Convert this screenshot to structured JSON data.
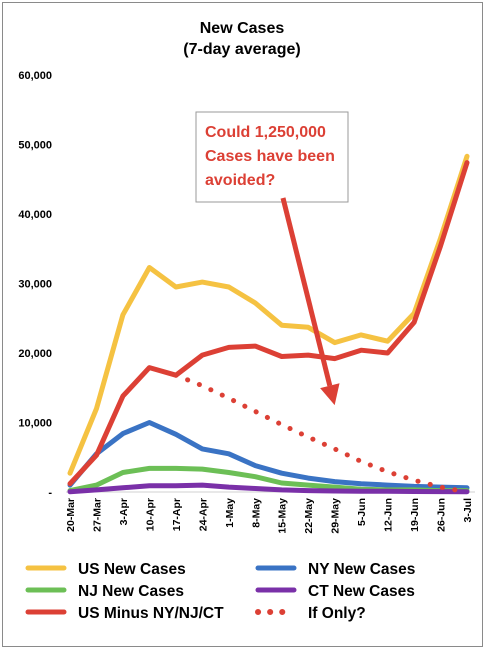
{
  "chart_data": {
    "type": "line",
    "title_lines": [
      "New Cases",
      "(7-day average)"
    ],
    "xlabel": "",
    "ylabel": "",
    "ylim": [
      0,
      60000
    ],
    "y_ticks": [
      0,
      10000,
      20000,
      30000,
      40000,
      50000,
      60000
    ],
    "y_tick_labels": [
      "-",
      "10,000",
      "20,000",
      "30,000",
      "40,000",
      "50,000",
      "60,000"
    ],
    "grid": false,
    "legend_position": "bottom",
    "categories": [
      "20-Mar",
      "27-Mar",
      "3-Apr",
      "10-Apr",
      "17-Apr",
      "24-Apr",
      "1-May",
      "8-May",
      "15-May",
      "22-May",
      "29-May",
      "5-Jun",
      "12-Jun",
      "19-Jun",
      "26-Jun",
      "3-Jul"
    ],
    "series": [
      {
        "name": "US New Cases",
        "color": "#f5c242",
        "style": "solid",
        "values": [
          2700,
          12000,
          25500,
          32300,
          29500,
          30200,
          29500,
          27200,
          24000,
          23700,
          21500,
          22600,
          21700,
          25700,
          36500,
          48300
        ]
      },
      {
        "name": "NY New Cases",
        "color": "#3a73c4",
        "style": "solid",
        "values": [
          1000,
          5500,
          8400,
          10000,
          8300,
          6200,
          5500,
          3800,
          2700,
          2000,
          1500,
          1200,
          1000,
          800,
          700,
          600
        ]
      },
      {
        "name": "NJ New Cases",
        "color": "#6cbf56",
        "style": "solid",
        "values": [
          200,
          1000,
          2800,
          3400,
          3400,
          3300,
          2800,
          2200,
          1300,
          1000,
          700,
          400,
          300,
          300,
          200,
          200
        ]
      },
      {
        "name": "CT New Cases",
        "color": "#7a30a8",
        "style": "solid",
        "values": [
          50,
          300,
          600,
          900,
          900,
          1000,
          700,
          500,
          300,
          200,
          150,
          100,
          100,
          70,
          60,
          50
        ]
      },
      {
        "name": "US Minus NY/NJ/CT",
        "color": "#dc4035",
        "style": "solid",
        "values": [
          1200,
          5300,
          13800,
          17900,
          16800,
          19700,
          20800,
          21000,
          19500,
          19700,
          19200,
          20400,
          20000,
          24400,
          35400,
          47400
        ]
      },
      {
        "name": "If Only?",
        "color": "#dc4035",
        "style": "dotted",
        "values": [
          null,
          null,
          null,
          null,
          16800,
          15300,
          13500,
          11600,
          9700,
          7900,
          6200,
          4400,
          2900,
          1700,
          700,
          0
        ]
      }
    ],
    "annotation": {
      "lines": [
        "Could 1,250,000",
        "Cases have been",
        "avoided?"
      ],
      "color": "#dc4035",
      "arrow_target": {
        "x": "29-May",
        "y": 12500
      }
    }
  }
}
